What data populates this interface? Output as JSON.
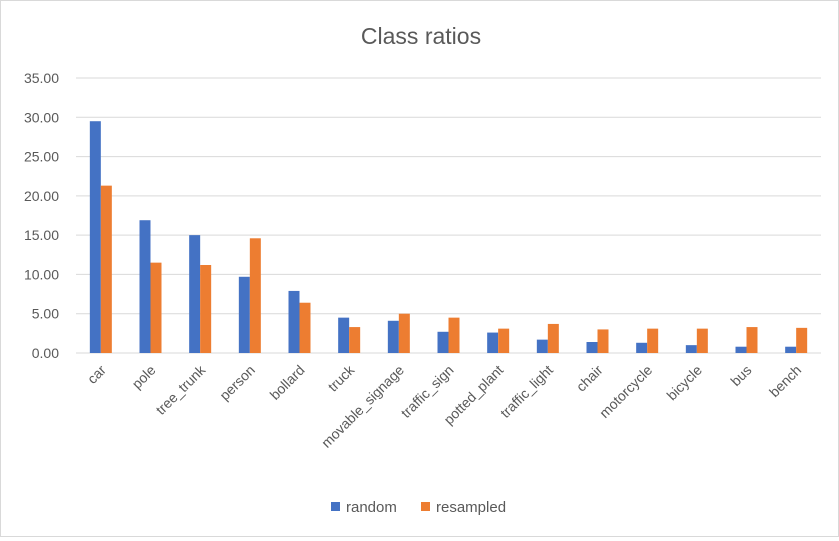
{
  "chart_data": {
    "type": "bar",
    "title": "Class ratios",
    "xlabel": "",
    "ylabel": "",
    "ylim": [
      0,
      35
    ],
    "yticks": [
      "0.00",
      "5.00",
      "10.00",
      "15.00",
      "20.00",
      "25.00",
      "30.00",
      "35.00"
    ],
    "grid": true,
    "legend_position": "bottom",
    "categories": [
      "car",
      "pole",
      "tree_trunk",
      "person",
      "bollard",
      "truck",
      "movable_signage",
      "traffic_sign",
      "potted_plant",
      "traffic_light",
      "chair",
      "motorcycle",
      "bicycle",
      "bus",
      "bench"
    ],
    "series": [
      {
        "name": "random",
        "color": "#4472c4",
        "values": [
          29.5,
          16.9,
          15.0,
          9.7,
          7.9,
          4.5,
          4.1,
          2.7,
          2.6,
          1.7,
          1.4,
          1.3,
          1.0,
          0.8,
          0.8
        ]
      },
      {
        "name": "resampled",
        "color": "#ed7d31",
        "values": [
          21.3,
          11.5,
          11.2,
          14.6,
          6.4,
          3.3,
          5.0,
          4.5,
          3.1,
          3.7,
          3.0,
          3.1,
          3.1,
          3.3,
          3.2
        ]
      }
    ]
  }
}
